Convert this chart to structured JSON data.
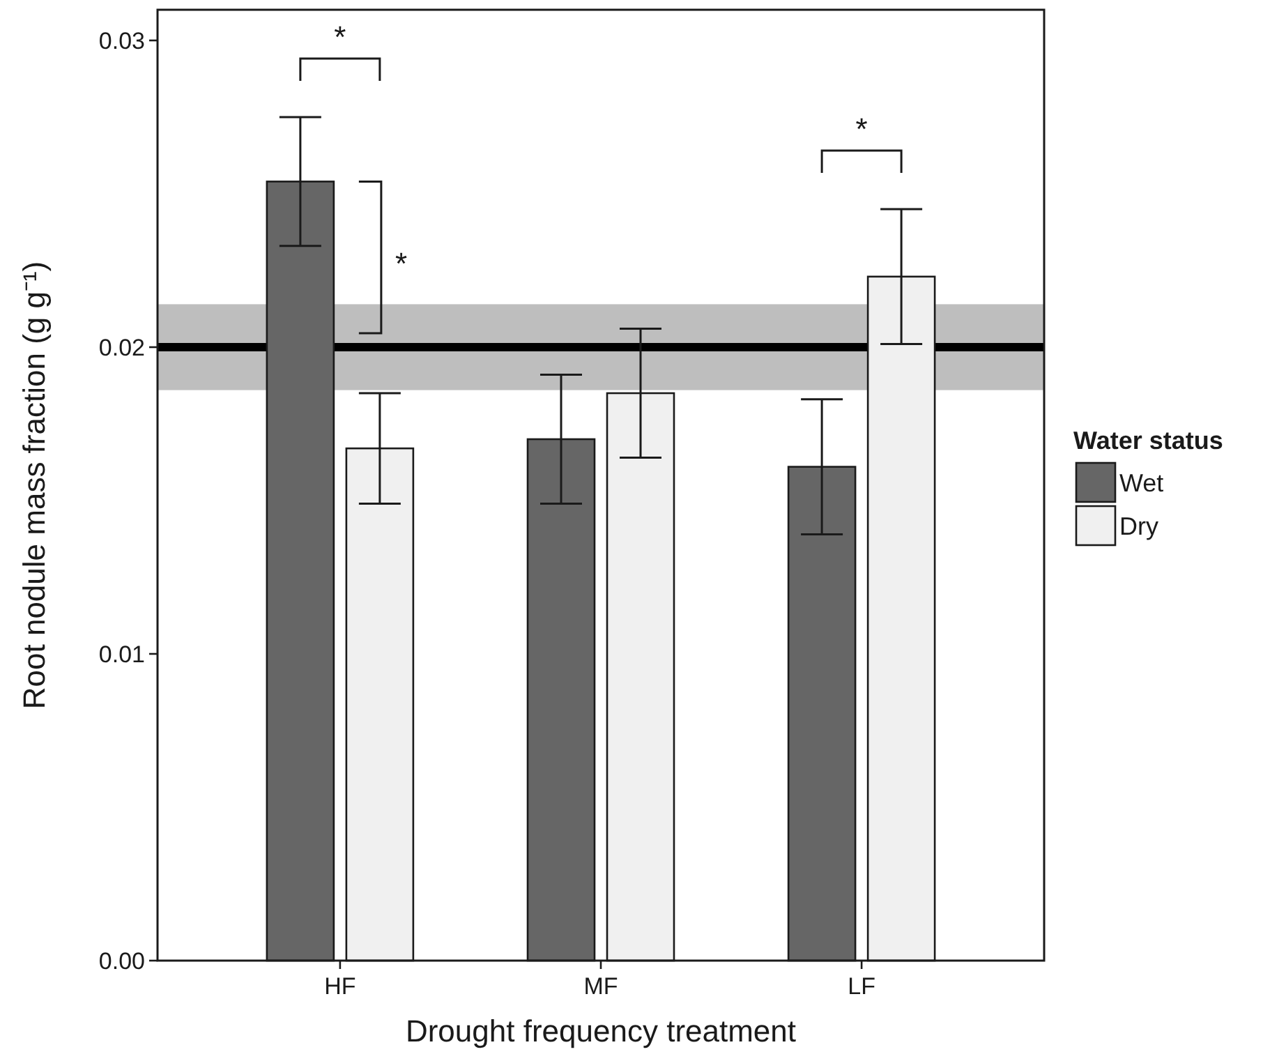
{
  "chart_data": {
    "type": "bar",
    "xlabel": "Drought frequency treatment",
    "ylabel": "Root nodule mass fraction (g g⁻¹)",
    "legend_title": "Water status",
    "categories": [
      "HF",
      "MF",
      "LF"
    ],
    "series": [
      {
        "name": "Wet",
        "color": "#666666",
        "values": [
          0.0254,
          0.017,
          0.0161
        ],
        "errors": [
          0.0021,
          0.0021,
          0.0022
        ]
      },
      {
        "name": "Dry",
        "color": "#f0f0f0",
        "values": [
          0.0167,
          0.0185,
          0.0223
        ],
        "errors": [
          0.0018,
          0.0021,
          0.0022
        ]
      }
    ],
    "ylim": [
      0,
      0.031
    ],
    "yticks": [
      {
        "value": 0,
        "label": "0.00"
      },
      0.01,
      0.02,
      0.03
    ],
    "ref_lines": [
      {
        "axis": "y",
        "value": 0.02,
        "color": "#000000"
      }
    ],
    "bands": [
      {
        "axis": "y",
        "from": 0.0186,
        "to": 0.0214,
        "color": "#bebebe"
      }
    ],
    "annotations": [
      "*",
      "*",
      "*"
    ],
    "legend": "right",
    "grid": false
  }
}
